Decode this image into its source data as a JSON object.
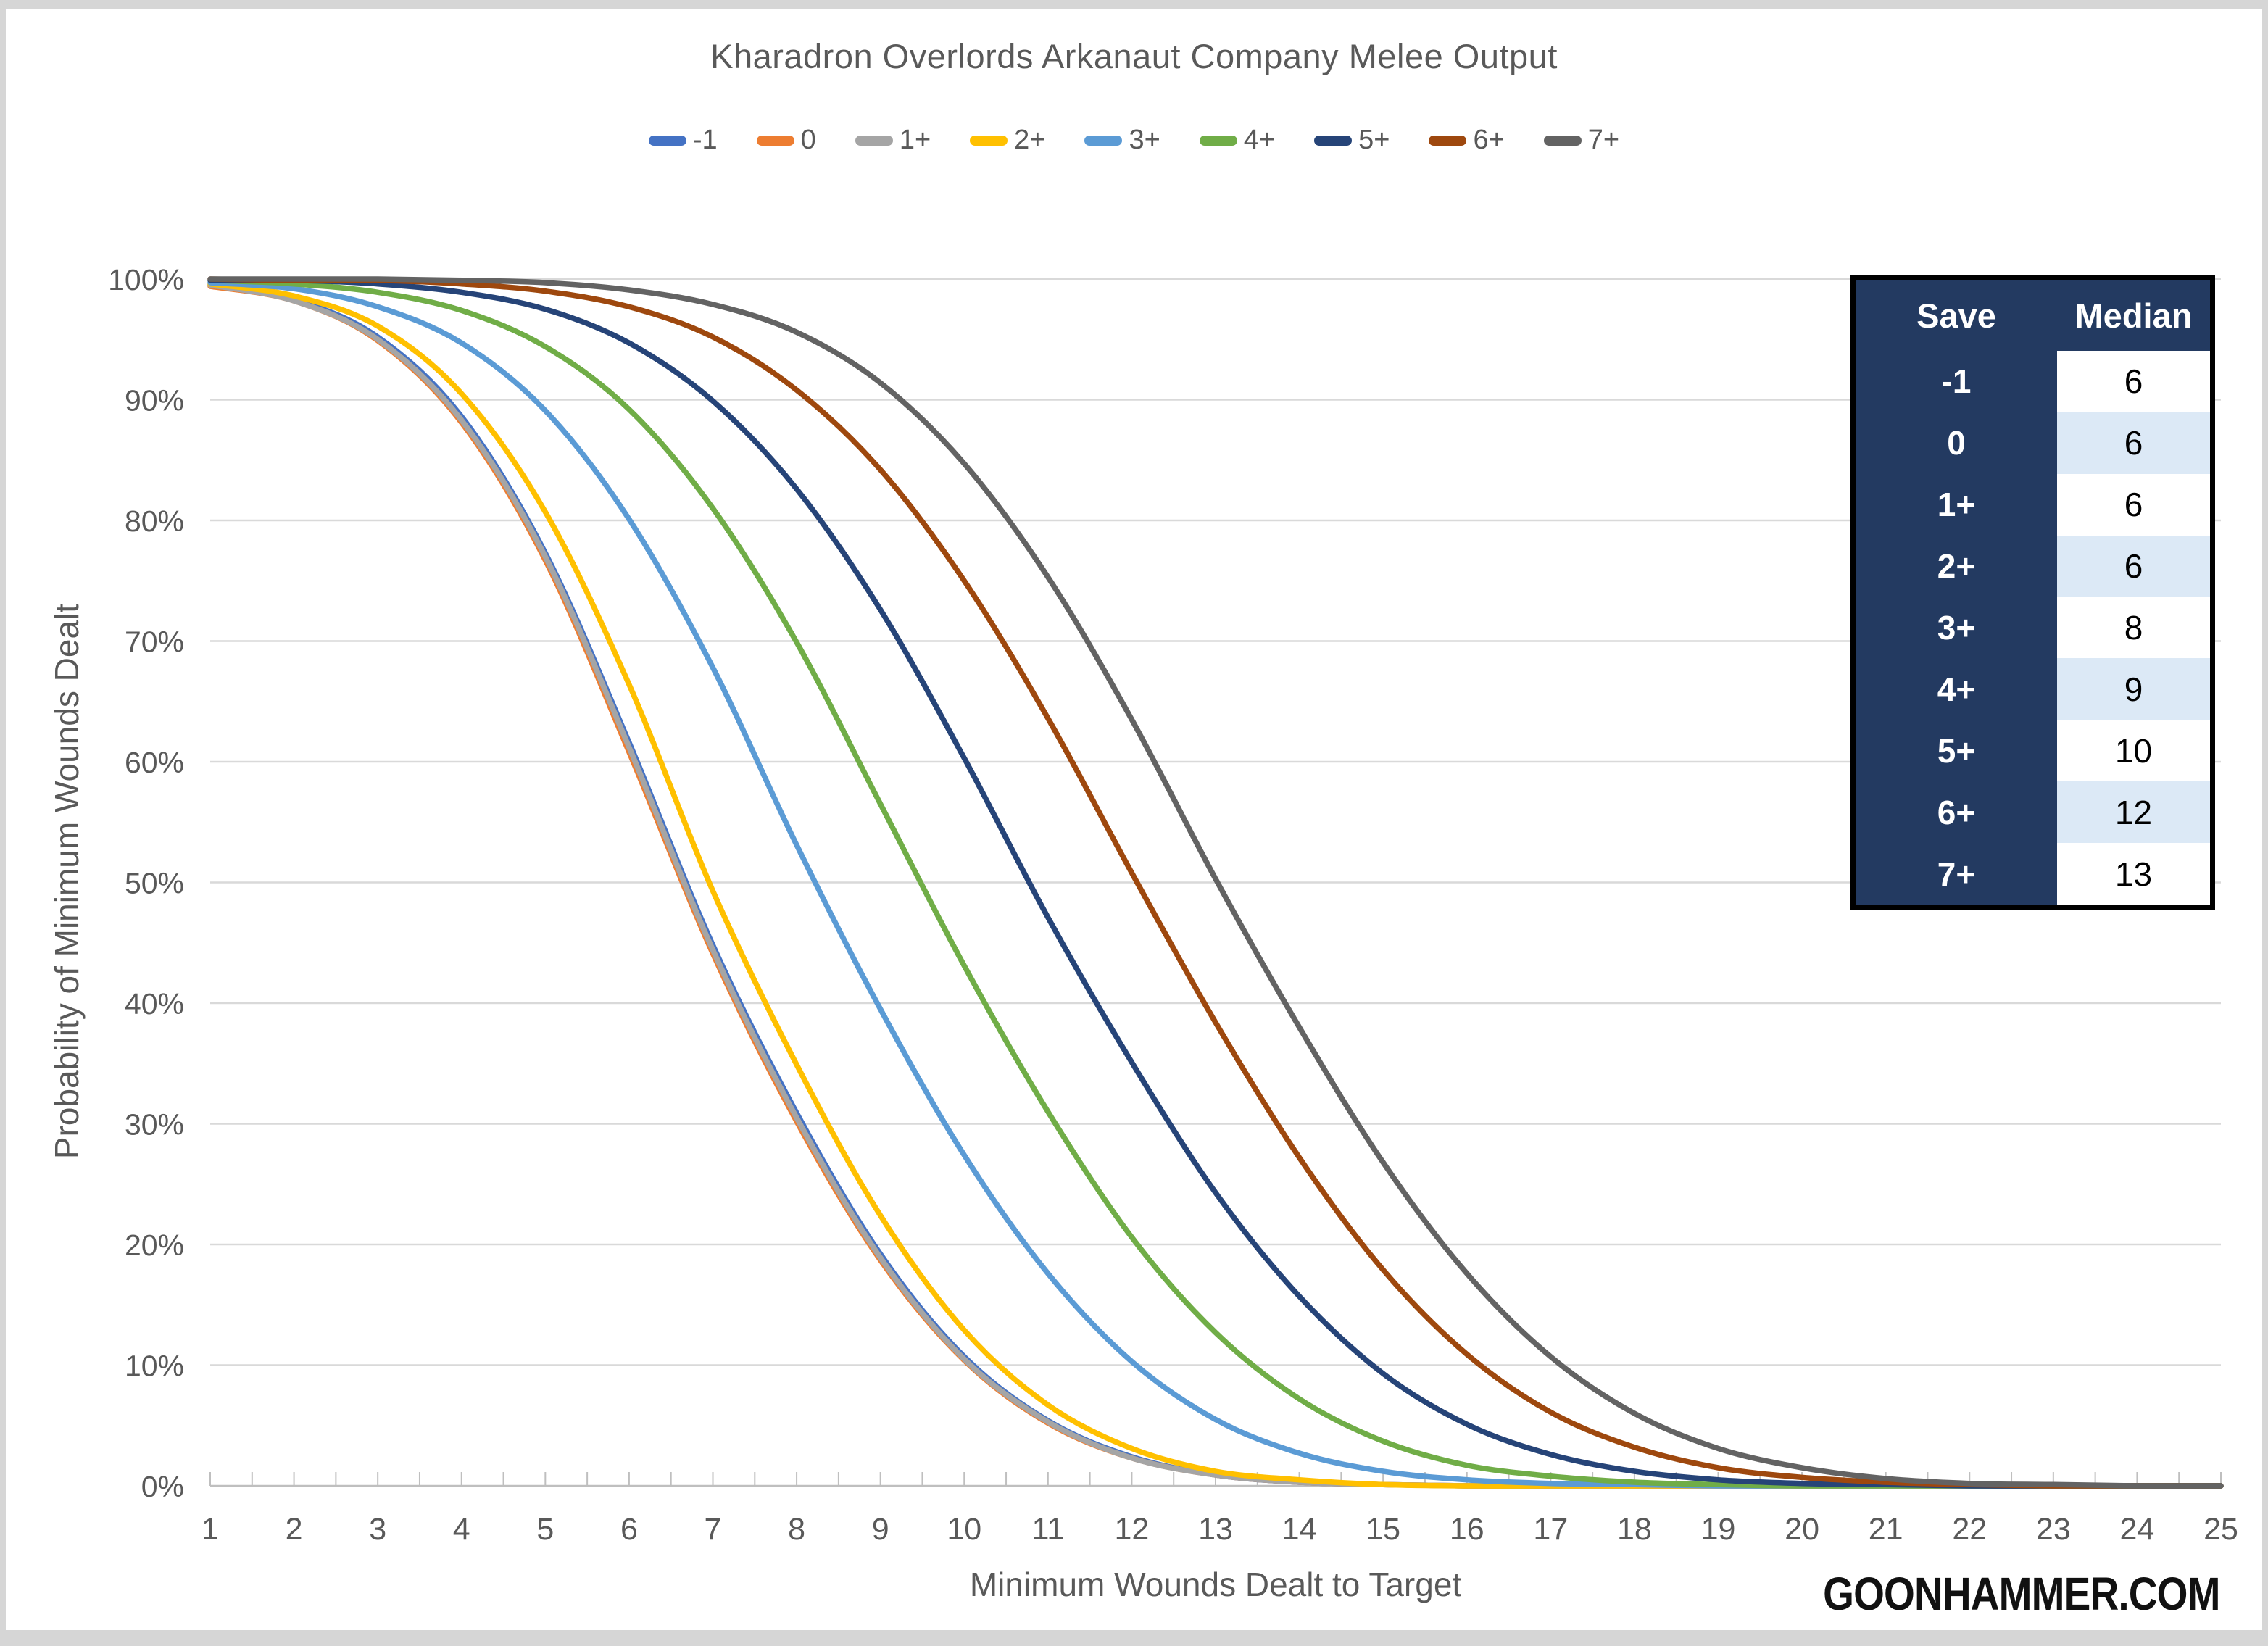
{
  "page": {
    "background": "#d6d6d6",
    "watermark": "GOONHAMMER.COM"
  },
  "chart": {
    "title": "Kharadron Overlords Arkanaut Company Melee Output",
    "x_axis_title": "Minimum Wounds Dealt to Target",
    "y_axis_title": "Probability of Minimum Wounds Dealt",
    "gridline_color": "#d9d9d9",
    "axis_color": "#bfbfbf",
    "label_color": "#595959"
  },
  "chart_data": {
    "type": "line",
    "title": "Kharadron Overlords Arkanaut Company Melee Output",
    "xlabel": "Minimum Wounds Dealt to Target",
    "ylabel": "Probability of Minimum Wounds Dealt",
    "x": [
      1,
      2,
      3,
      4,
      5,
      6,
      7,
      8,
      9,
      10,
      11,
      12,
      13,
      14,
      15,
      16,
      17,
      18,
      19,
      20,
      21,
      22,
      23,
      24,
      25
    ],
    "xlim": [
      1,
      25
    ],
    "ylim": [
      0,
      100
    ],
    "y_tick_labels": [
      "0%",
      "10%",
      "20%",
      "30%",
      "40%",
      "50%",
      "60%",
      "70%",
      "80%",
      "90%",
      "100%"
    ],
    "grid": "horizontal",
    "legend_position": "top",
    "series": [
      {
        "name": "-1",
        "color": "#4472C4",
        "values": [
          99.5,
          98.3,
          95.2,
          88.6,
          77.3,
          61.6,
          44.8,
          30.9,
          19.2,
          10.7,
          5.4,
          2.4,
          0.9,
          0.3,
          0.1,
          0,
          0,
          0,
          0,
          0,
          0,
          0,
          0,
          0,
          0
        ]
      },
      {
        "name": "0",
        "color": "#ED7D31",
        "values": [
          99.4,
          98.2,
          94.9,
          88.1,
          76.7,
          60.8,
          44.1,
          30.2,
          18.7,
          10.4,
          5.2,
          2.3,
          0.9,
          0.3,
          0.1,
          0,
          0,
          0,
          0,
          0,
          0,
          0,
          0,
          0,
          0
        ]
      },
      {
        "name": "1+",
        "color": "#A5A5A5",
        "values": [
          99.5,
          98.2,
          95.0,
          88.3,
          77.0,
          61.2,
          44.4,
          30.5,
          18.9,
          10.5,
          5.3,
          2.3,
          0.9,
          0.3,
          0.1,
          0,
          0,
          0,
          0,
          0,
          0,
          0,
          0,
          0,
          0
        ]
      },
      {
        "name": "2+",
        "color": "#FFC000",
        "values": [
          99.6,
          98.6,
          96.1,
          90.5,
          80.7,
          66.4,
          49.3,
          34.9,
          22.4,
          12.9,
          6.7,
          3.1,
          1.2,
          0.5,
          0.1,
          0,
          0,
          0,
          0,
          0,
          0,
          0,
          0,
          0,
          0
        ]
      },
      {
        "name": "3+",
        "color": "#5B9BD5",
        "values": [
          99.7,
          99.2,
          97.7,
          94.7,
          89.1,
          80.1,
          67.8,
          53.1,
          39.5,
          27.4,
          17.6,
          10.3,
          5.5,
          2.7,
          1.2,
          0.5,
          0.2,
          0.1,
          0,
          0,
          0,
          0,
          0,
          0,
          0
        ]
      },
      {
        "name": "4+",
        "color": "#70AD47",
        "values": [
          99.9,
          99.6,
          98.9,
          97.4,
          94.4,
          89.2,
          81.0,
          69.9,
          56.5,
          43.1,
          31.0,
          20.6,
          12.7,
          7.2,
          3.7,
          1.7,
          0.8,
          0.3,
          0.1,
          0,
          0,
          0,
          0,
          0,
          0
        ]
      },
      {
        "name": "5+",
        "color": "#264478",
        "values": [
          99.9,
          99.9,
          99.6,
          98.9,
          97.5,
          94.7,
          89.9,
          82.6,
          72.6,
          60.3,
          47.1,
          35.1,
          24.3,
          15.7,
          9.3,
          5.1,
          2.6,
          1.2,
          0.5,
          0.2,
          0.1,
          0,
          0,
          0,
          0
        ]
      },
      {
        "name": "6+",
        "color": "#9E480E",
        "values": [
          100,
          99.9,
          99.9,
          99.6,
          99.0,
          97.7,
          95.2,
          90.8,
          84.2,
          75.0,
          63.6,
          50.8,
          38.4,
          27.2,
          17.9,
          10.9,
          6.1,
          3.2,
          1.5,
          0.7,
          0.3,
          0.1,
          0,
          0,
          0
        ]
      },
      {
        "name": "7+",
        "color": "#636363",
        "values": [
          100,
          100,
          100,
          99.9,
          99.7,
          99.1,
          97.9,
          95.6,
          91.4,
          84.7,
          75.3,
          63.5,
          50.3,
          38.0,
          26.8,
          17.6,
          10.7,
          6.0,
          3.1,
          1.5,
          0.6,
          0.2,
          0.1,
          0,
          0
        ]
      }
    ]
  },
  "median_table": {
    "headers": [
      "Save",
      "Median"
    ],
    "rows": [
      {
        "save": "-1",
        "median": "6"
      },
      {
        "save": "0",
        "median": "6"
      },
      {
        "save": "1+",
        "median": "6"
      },
      {
        "save": "2+",
        "median": "6"
      },
      {
        "save": "3+",
        "median": "8"
      },
      {
        "save": "4+",
        "median": "9"
      },
      {
        "save": "5+",
        "median": "10"
      },
      {
        "save": "6+",
        "median": "12"
      },
      {
        "save": "7+",
        "median": "13"
      }
    ],
    "header_bg": "#233A61",
    "alt_row_bg": "#DCE9F6",
    "row_bg": "#FFFFFF"
  }
}
